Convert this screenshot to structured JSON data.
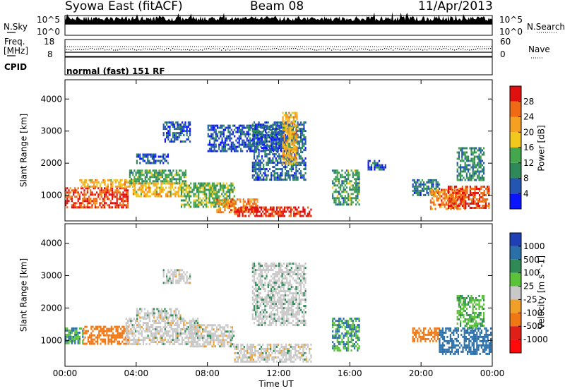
{
  "header": {
    "title": "Syowa East (fitACF)",
    "beam": "Beam 08",
    "date": "11/Apr/2013"
  },
  "strips": {
    "nsky_label": "N.Sky",
    "nsearch_label": "N.Search",
    "noise_ticks": [
      "10^5",
      "10^0"
    ],
    "freq_label": "Freq.",
    "freq_unit": "[MHz]",
    "freq_ticks": [
      "18",
      "8"
    ],
    "nave_label": "Nave",
    "nave_ticks": [
      "60",
      "0"
    ],
    "cpid_label": "CPID",
    "cpid_text": "normal (fast) 151 RF"
  },
  "colors": {
    "power": [
      "#0a14ff",
      "#2455b0",
      "#2f8a5a",
      "#44a64d",
      "#f2c81e",
      "#f5a020",
      "#ef6a14",
      "#e01010"
    ],
    "velocity": [
      "#1f3fb4",
      "#2b6fa8",
      "#2f8a55",
      "#5cc23a",
      "#c8c8c8",
      "#f0a028",
      "#f07814",
      "#e02018",
      "#ff0a0a"
    ]
  },
  "chart_data": [
    {
      "type": "heatmap",
      "panel": "power",
      "x_domain": [
        "00:00",
        "24:00"
      ],
      "xlim": [
        0,
        24
      ],
      "ylim": [
        200,
        4600
      ],
      "ylabel": "Slant Range [km]",
      "yticks": [
        1000,
        2000,
        3000,
        4000
      ],
      "xticks": [
        "00:00",
        "04:00",
        "08:00",
        "12:00",
        "16:00",
        "20:00",
        "00:00"
      ],
      "colorbar": {
        "label": "Power [dB]",
        "range": [
          0,
          32
        ],
        "ticks": [
          "4",
          "8",
          "12",
          "16",
          "20",
          "24",
          "28"
        ]
      },
      "features": [
        {
          "t0": 0.0,
          "t1": 3.5,
          "r0": 600,
          "r1": 1250,
          "value": 28
        },
        {
          "t0": 0.8,
          "t1": 3.8,
          "r0": 1250,
          "r1": 1500,
          "value": 20
        },
        {
          "t0": 3.6,
          "t1": 6.8,
          "r0": 1400,
          "r1": 1800,
          "value": 12
        },
        {
          "t0": 3.8,
          "t1": 6.8,
          "r0": 1000,
          "r1": 1400,
          "value": 20
        },
        {
          "t0": 4.0,
          "t1": 5.8,
          "r0": 2000,
          "r1": 2300,
          "value": 6
        },
        {
          "t0": 5.5,
          "t1": 7.0,
          "r0": 2700,
          "r1": 3300,
          "value": 6
        },
        {
          "t0": 6.5,
          "t1": 9.5,
          "r0": 650,
          "r1": 1400,
          "value": 14
        },
        {
          "t0": 8.5,
          "t1": 10.8,
          "r0": 500,
          "r1": 900,
          "value": 24
        },
        {
          "t0": 9.5,
          "t1": 13.8,
          "r0": 350,
          "r1": 650,
          "value": 30
        },
        {
          "t0": 8.0,
          "t1": 12.5,
          "r0": 2400,
          "r1": 3200,
          "value": 6
        },
        {
          "t0": 10.5,
          "t1": 13.5,
          "r0": 1500,
          "r1": 3300,
          "value": 7
        },
        {
          "t0": 12.2,
          "t1": 13.0,
          "r0": 2000,
          "r1": 3600,
          "value": 20
        },
        {
          "t0": 15.0,
          "t1": 16.5,
          "r0": 700,
          "r1": 1800,
          "value": 12
        },
        {
          "t0": 17.0,
          "t1": 18.0,
          "r0": 1800,
          "r1": 2100,
          "value": 6
        },
        {
          "t0": 19.5,
          "t1": 21.0,
          "r0": 1000,
          "r1": 1500,
          "value": 8
        },
        {
          "t0": 20.5,
          "t1": 22.5,
          "r0": 600,
          "r1": 1200,
          "value": 24
        },
        {
          "t0": 21.5,
          "t1": 23.8,
          "r0": 600,
          "r1": 1300,
          "value": 28
        },
        {
          "t0": 22.0,
          "t1": 23.5,
          "r0": 1500,
          "r1": 2500,
          "value": 10
        }
      ]
    },
    {
      "type": "heatmap",
      "panel": "velocity",
      "x_domain": [
        "00:00",
        "24:00"
      ],
      "xlim": [
        0,
        24
      ],
      "ylim": [
        200,
        4600
      ],
      "ylabel": "Slant Range [km]",
      "xlabel": "Time UT",
      "yticks": [
        1000,
        2000,
        3000,
        4000
      ],
      "xticks": [
        "00:00",
        "04:00",
        "08:00",
        "12:00",
        "16:00",
        "20:00",
        "00:00"
      ],
      "colorbar": {
        "label": "Velocity [m s^-1]",
        "ticks": [
          "1000",
          "500",
          "100",
          "25",
          "-25",
          "-100",
          "-500",
          "-1000"
        ]
      },
      "features": [
        {
          "t0": 0.0,
          "t1": 1.0,
          "r0": 900,
          "r1": 1400,
          "value": 100
        },
        {
          "t0": 1.0,
          "t1": 3.6,
          "r0": 900,
          "r1": 1450,
          "value": -300
        },
        {
          "t0": 3.4,
          "t1": 7.5,
          "r0": 900,
          "r1": 1700,
          "value": 0
        },
        {
          "t0": 4.0,
          "t1": 6.5,
          "r0": 1700,
          "r1": 2000,
          "value": 0
        },
        {
          "t0": 5.5,
          "t1": 7.0,
          "r0": 2800,
          "r1": 3200,
          "value": 0
        },
        {
          "t0": 7.0,
          "t1": 9.5,
          "r0": 800,
          "r1": 1500,
          "value": 0
        },
        {
          "t0": 9.5,
          "t1": 13.8,
          "r0": 350,
          "r1": 900,
          "value": 0
        },
        {
          "t0": 10.5,
          "t1": 13.5,
          "r0": 1500,
          "r1": 3400,
          "value": 5
        },
        {
          "t0": 15.0,
          "t1": 16.5,
          "r0": 700,
          "r1": 1700,
          "value": 100
        },
        {
          "t0": 19.5,
          "t1": 21.0,
          "r0": 1000,
          "r1": 1400,
          "value": -300
        },
        {
          "t0": 21.0,
          "t1": 23.9,
          "r0": 600,
          "r1": 1400,
          "value": 300
        },
        {
          "t0": 22.0,
          "t1": 23.5,
          "r0": 1400,
          "r1": 2400,
          "value": 60
        }
      ]
    }
  ]
}
